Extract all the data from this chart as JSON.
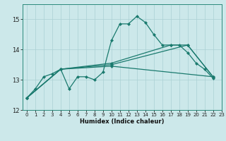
{
  "background_color": "#cce8ea",
  "grid_color": "#aad0d4",
  "line_color": "#1a7a6e",
  "xlabel": "Humidex (Indice chaleur)",
  "xlim": [
    -0.5,
    23
  ],
  "ylim": [
    12,
    15.5
  ],
  "yticks": [
    12,
    13,
    14,
    15
  ],
  "xticks": [
    0,
    1,
    2,
    3,
    4,
    5,
    6,
    7,
    8,
    9,
    10,
    11,
    12,
    13,
    14,
    15,
    16,
    17,
    18,
    19,
    20,
    21,
    22,
    23
  ],
  "line1": [
    [
      0,
      12.4
    ],
    [
      1,
      12.7
    ],
    [
      2,
      13.1
    ],
    [
      3,
      13.2
    ],
    [
      4,
      13.35
    ],
    [
      5,
      12.7
    ],
    [
      6,
      13.1
    ],
    [
      7,
      13.1
    ],
    [
      8,
      13.0
    ],
    [
      9,
      13.25
    ],
    [
      10,
      14.3
    ],
    [
      11,
      14.85
    ],
    [
      12,
      14.85
    ],
    [
      13,
      15.1
    ],
    [
      14,
      14.9
    ],
    [
      15,
      14.5
    ],
    [
      16,
      14.15
    ],
    [
      17,
      14.15
    ],
    [
      18,
      14.15
    ],
    [
      19,
      13.9
    ],
    [
      20,
      13.55
    ],
    [
      21,
      13.35
    ],
    [
      22,
      13.05
    ]
  ],
  "line2": [
    [
      0,
      12.4
    ],
    [
      4,
      13.35
    ],
    [
      10,
      13.45
    ],
    [
      22,
      13.1
    ]
  ],
  "line3": [
    [
      0,
      12.4
    ],
    [
      4,
      13.35
    ],
    [
      10,
      13.5
    ],
    [
      19,
      14.15
    ],
    [
      22,
      13.1
    ]
  ],
  "line4": [
    [
      0,
      12.4
    ],
    [
      4,
      13.35
    ],
    [
      10,
      13.55
    ],
    [
      17,
      14.15
    ],
    [
      19,
      14.15
    ],
    [
      22,
      13.1
    ]
  ]
}
